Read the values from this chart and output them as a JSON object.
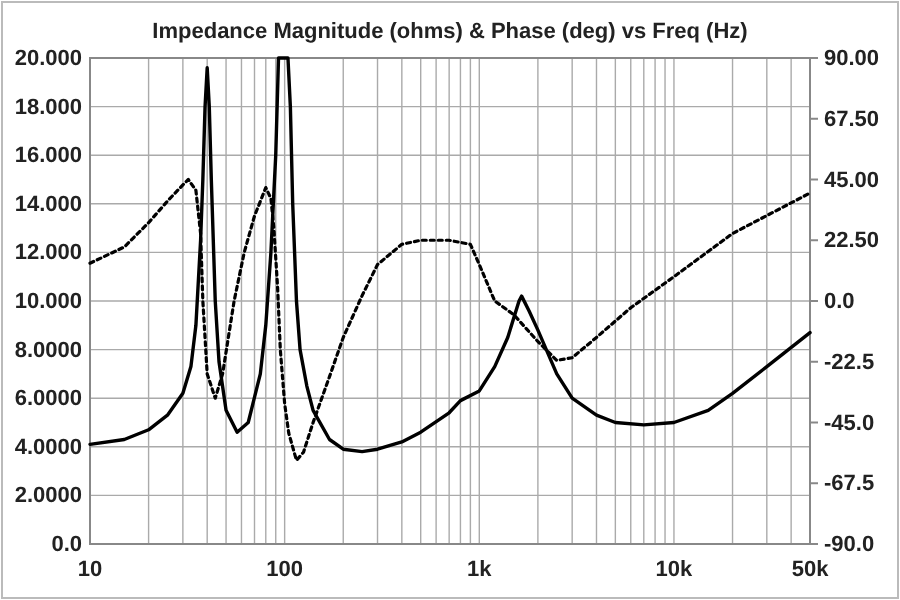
{
  "chart_data": {
    "type": "line",
    "title": "Impedance Magnitude (ohms) & Phase (deg) vs Freq (Hz)",
    "log": "x",
    "grid": true,
    "marker": "none",
    "xlim": [
      10,
      50000
    ],
    "xticks": [
      {
        "value": 10,
        "label": "10"
      },
      {
        "value": 20,
        "label": null
      },
      {
        "value": 30,
        "label": null
      },
      {
        "value": 40,
        "label": null
      },
      {
        "value": 50,
        "label": null
      },
      {
        "value": 60,
        "label": null
      },
      {
        "value": 70,
        "label": null
      },
      {
        "value": 80,
        "label": null
      },
      {
        "value": 90,
        "label": null
      },
      {
        "value": 100,
        "label": "100"
      },
      {
        "value": 200,
        "label": null
      },
      {
        "value": 300,
        "label": null
      },
      {
        "value": 400,
        "label": null
      },
      {
        "value": 500,
        "label": null
      },
      {
        "value": 600,
        "label": null
      },
      {
        "value": 700,
        "label": null
      },
      {
        "value": 800,
        "label": null
      },
      {
        "value": 900,
        "label": null
      },
      {
        "value": 1000,
        "label": "1k"
      },
      {
        "value": 2000,
        "label": null
      },
      {
        "value": 3000,
        "label": null
      },
      {
        "value": 4000,
        "label": null
      },
      {
        "value": 5000,
        "label": null
      },
      {
        "value": 6000,
        "label": null
      },
      {
        "value": 7000,
        "label": null
      },
      {
        "value": 8000,
        "label": null
      },
      {
        "value": 9000,
        "label": null
      },
      {
        "value": 10000,
        "label": "10k"
      },
      {
        "value": 20000,
        "label": null
      },
      {
        "value": 30000,
        "label": null
      },
      {
        "value": 40000,
        "label": null
      },
      {
        "value": 50000,
        "label": "50k"
      }
    ],
    "ylim": [
      0,
      20
    ],
    "yticks": [
      {
        "value": 0,
        "label": "0.0"
      },
      {
        "value": 2,
        "label": "2.0000"
      },
      {
        "value": 4,
        "label": "4.0000"
      },
      {
        "value": 6,
        "label": "6.0000"
      },
      {
        "value": 8,
        "label": "8.0000"
      },
      {
        "value": 10,
        "label": "10.000"
      },
      {
        "value": 12,
        "label": "12.000"
      },
      {
        "value": 14,
        "label": "14.000"
      },
      {
        "value": 16,
        "label": "16.000"
      },
      {
        "value": 18,
        "label": "18.000"
      },
      {
        "value": 20,
        "label": "20.000"
      }
    ],
    "y2lim": [
      -90,
      90
    ],
    "y2ticks": [
      {
        "value": -90,
        "label": "-90.0"
      },
      {
        "value": -67.5,
        "label": "-67.5"
      },
      {
        "value": -45,
        "label": "-45.0"
      },
      {
        "value": -22.5,
        "label": "-22.5"
      },
      {
        "value": 0,
        "label": "0.0"
      },
      {
        "value": 22.5,
        "label": "22.50"
      },
      {
        "value": 45,
        "label": "45.00"
      },
      {
        "value": 67.5,
        "label": "67.50"
      },
      {
        "value": 90,
        "label": "90.00"
      }
    ],
    "series": [
      {
        "color": "#000000",
        "line_style": "solid",
        "x": [
          10,
          15,
          20,
          25,
          30,
          33,
          35,
          37,
          38,
          39,
          40,
          41,
          42,
          44,
          46,
          50,
          57,
          65,
          75,
          80,
          85,
          90,
          93,
          96,
          100,
          104,
          107,
          110,
          115,
          120,
          130,
          140,
          170,
          200,
          250,
          300,
          400,
          500,
          700,
          800,
          1000,
          1200,
          1400,
          1600,
          1650,
          1800,
          2000,
          2500,
          3000,
          4000,
          5000,
          7000,
          10000,
          15000,
          20000,
          30000,
          50000
        ],
        "values": [
          4.1,
          4.3,
          4.7,
          5.3,
          6.2,
          7.3,
          9,
          12.5,
          15,
          18,
          19.6,
          18,
          15,
          10,
          7.5,
          5.5,
          4.6,
          5,
          7,
          9,
          12,
          16,
          20,
          20,
          20,
          20,
          18,
          14,
          10,
          8,
          6.5,
          5.5,
          4.3,
          3.9,
          3.8,
          3.9,
          4.2,
          4.6,
          5.4,
          5.9,
          6.3,
          7.3,
          8.5,
          10,
          10.2,
          9.6,
          8.8,
          7,
          6,
          5.3,
          5,
          4.9,
          5,
          5.5,
          6.2,
          7.3,
          8.7
        ]
      },
      {
        "color": "#000000",
        "line_style": "dotted",
        "axis": "y2",
        "x": [
          10,
          15,
          20,
          25,
          30,
          32,
          35,
          37,
          38,
          40,
          44,
          48,
          55,
          62,
          70,
          80,
          85,
          88,
          92,
          95,
          100,
          105,
          115,
          125,
          140,
          170,
          200,
          250,
          300,
          400,
          500,
          700,
          900,
          1000,
          1200,
          1500,
          2000,
          2500,
          3000,
          4000,
          6000,
          10000,
          20000,
          50000
        ],
        "values": [
          14,
          20,
          29,
          37,
          43,
          45,
          41,
          25,
          0,
          -27,
          -36,
          -27,
          0,
          18,
          31.5,
          42,
          38,
          27,
          5,
          -18,
          -38,
          -49,
          -59,
          -56,
          -45,
          -28,
          -13.5,
          2,
          13.5,
          21,
          22.5,
          22.5,
          21,
          13.5,
          0,
          -5,
          -15,
          -22,
          -21,
          -13.5,
          -2.5,
          9,
          25,
          40
        ]
      }
    ]
  }
}
